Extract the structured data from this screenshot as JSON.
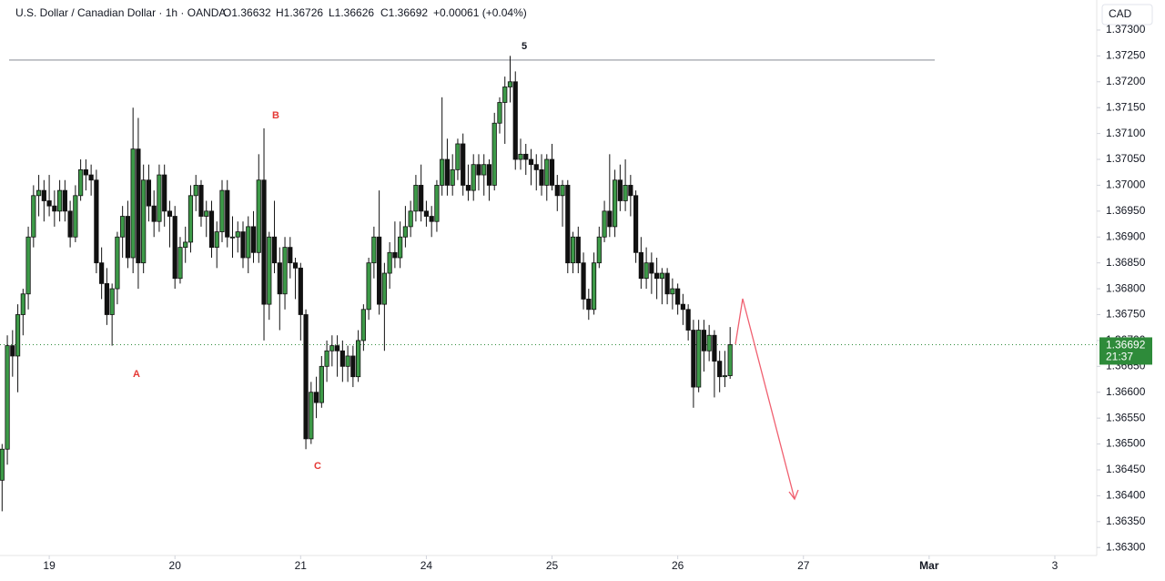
{
  "header": {
    "title": "U.S. Dollar / Canadian Dollar · 1h · OANDA",
    "open": "O1.36632",
    "high": "H1.36726",
    "low": "L1.36626",
    "close": "C1.36692",
    "change": "+0.00061 (+0.04%)"
  },
  "currency": "CAD",
  "last_price": {
    "label": "1.36692",
    "countdown": "21:37",
    "color": "#2e8b3a"
  },
  "chart_data": {
    "type": "candlestick",
    "annotations": [
      "A",
      "B",
      "C",
      "5"
    ],
    "hline": 1.37242,
    "xlim": [
      -0.4,
      209
    ],
    "xticks": [
      {
        "value": 9,
        "label": "19"
      },
      {
        "value": 33,
        "label": "20"
      },
      {
        "value": 57,
        "label": "21"
      },
      {
        "value": 81,
        "label": "24"
      },
      {
        "value": 105,
        "label": "25"
      },
      {
        "value": 129,
        "label": "26"
      },
      {
        "value": 153,
        "label": "27"
      },
      {
        "value": 177,
        "label": "Mar"
      },
      {
        "value": 201,
        "label": "3"
      }
    ],
    "ylim": [
      1.36281,
      1.37358
    ],
    "yticks": [
      {
        "value": 1.363,
        "label": "1.36300"
      },
      {
        "value": 1.3635,
        "label": "1.36350"
      },
      {
        "value": 1.364,
        "label": "1.36400"
      },
      {
        "value": 1.3645,
        "label": "1.36450"
      },
      {
        "value": 1.365,
        "label": "1.36500"
      },
      {
        "value": 1.3655,
        "label": "1.36550"
      },
      {
        "value": 1.366,
        "label": "1.36600"
      },
      {
        "value": 1.3665,
        "label": "1.36650"
      },
      {
        "value": 1.367,
        "label": "1.36700"
      },
      {
        "value": 1.3675,
        "label": "1.36750"
      },
      {
        "value": 1.368,
        "label": "1.36800"
      },
      {
        "value": 1.3685,
        "label": "1.36850"
      },
      {
        "value": 1.369,
        "label": "1.36900"
      },
      {
        "value": 1.3695,
        "label": "1.36950"
      },
      {
        "value": 1.37,
        "label": "1.37000"
      },
      {
        "value": 1.3705,
        "label": "1.37050"
      },
      {
        "value": 1.371,
        "label": "1.37100"
      },
      {
        "value": 1.3715,
        "label": "1.37150"
      },
      {
        "value": 1.372,
        "label": "1.37200"
      },
      {
        "value": 1.3725,
        "label": "1.37250"
      },
      {
        "value": 1.373,
        "label": "1.37300"
      }
    ],
    "x": [
      0,
      1,
      2,
      3,
      4,
      5,
      6,
      7,
      8,
      9,
      10,
      11,
      12,
      13,
      14,
      15,
      16,
      17,
      18,
      19,
      20,
      21,
      22,
      23,
      24,
      25,
      26,
      27,
      28,
      29,
      30,
      31,
      32,
      33,
      34,
      35,
      36,
      37,
      38,
      39,
      40,
      41,
      42,
      43,
      44,
      45,
      46,
      47,
      48,
      49,
      50,
      51,
      52,
      53,
      54,
      55,
      56,
      57,
      58,
      59,
      60,
      61,
      62,
      63,
      64,
      65,
      66,
      67,
      68,
      69,
      70,
      71,
      72,
      73,
      74,
      75,
      76,
      77,
      78,
      79,
      80,
      81,
      82,
      83,
      84,
      85,
      86,
      87,
      88,
      89,
      90,
      91,
      92,
      93,
      94,
      95,
      96,
      97,
      98,
      99,
      100,
      101,
      102,
      103,
      104,
      105,
      106,
      107,
      108,
      109,
      110,
      111,
      112,
      113,
      114,
      115,
      116,
      117,
      118,
      119,
      120,
      121,
      122,
      123,
      124,
      125,
      126,
      127,
      128,
      129,
      130,
      131,
      132,
      133,
      134,
      135,
      136,
      137,
      138,
      139
    ],
    "series": [
      {
        "up_color": "#3d9a48",
        "down_color": "#111111",
        "ohlc": [
          [
            1.3643,
            1.365,
            1.3637,
            1.3649
          ],
          [
            1.3649,
            1.3671,
            1.3646,
            1.3669
          ],
          [
            1.3669,
            1.3672,
            1.3663,
            1.3667
          ],
          [
            1.3667,
            1.3677,
            1.366,
            1.3675
          ],
          [
            1.3675,
            1.368,
            1.3671,
            1.3679
          ],
          [
            1.3679,
            1.3692,
            1.3676,
            1.369
          ],
          [
            1.369,
            1.37,
            1.3688,
            1.3698
          ],
          [
            1.3698,
            1.3702,
            1.3694,
            1.3699
          ],
          [
            1.3699,
            1.3701,
            1.3693,
            1.3697
          ],
          [
            1.3697,
            1.3702,
            1.3694,
            1.3696
          ],
          [
            1.3696,
            1.3699,
            1.3692,
            1.3695
          ],
          [
            1.3695,
            1.3701,
            1.3693,
            1.3699
          ],
          [
            1.3699,
            1.3701,
            1.3693,
            1.3695
          ],
          [
            1.3695,
            1.3697,
            1.3688,
            1.369
          ],
          [
            1.369,
            1.37,
            1.3689,
            1.3698
          ],
          [
            1.3698,
            1.3705,
            1.3697,
            1.3703
          ],
          [
            1.3703,
            1.3705,
            1.3699,
            1.3702
          ],
          [
            1.3702,
            1.3704,
            1.3698,
            1.3701
          ],
          [
            1.3701,
            1.3703,
            1.3683,
            1.3685
          ],
          [
            1.3685,
            1.3688,
            1.3678,
            1.3681
          ],
          [
            1.3681,
            1.3684,
            1.3673,
            1.3675
          ],
          [
            1.3675,
            1.3681,
            1.3669,
            1.368
          ],
          [
            1.368,
            1.3691,
            1.3677,
            1.369
          ],
          [
            1.369,
            1.3696,
            1.3686,
            1.3694
          ],
          [
            1.3694,
            1.3697,
            1.3684,
            1.3686
          ],
          [
            1.3686,
            1.3715,
            1.3683,
            1.3707
          ],
          [
            1.3707,
            1.3713,
            1.368,
            1.3685
          ],
          [
            1.3685,
            1.3704,
            1.3683,
            1.3701
          ],
          [
            1.3701,
            1.3704,
            1.3693,
            1.3696
          ],
          [
            1.3696,
            1.3699,
            1.369,
            1.3693
          ],
          [
            1.3693,
            1.3704,
            1.3691,
            1.3702
          ],
          [
            1.3702,
            1.3704,
            1.3692,
            1.3695
          ],
          [
            1.3695,
            1.3697,
            1.3688,
            1.3694
          ],
          [
            1.3694,
            1.3696,
            1.368,
            1.3682
          ],
          [
            1.3682,
            1.369,
            1.3681,
            1.3688
          ],
          [
            1.3688,
            1.3692,
            1.3685,
            1.3689
          ],
          [
            1.3689,
            1.37,
            1.3687,
            1.3698
          ],
          [
            1.3698,
            1.3702,
            1.3695,
            1.37
          ],
          [
            1.37,
            1.3701,
            1.3692,
            1.3694
          ],
          [
            1.3694,
            1.3697,
            1.369,
            1.3695
          ],
          [
            1.3695,
            1.3697,
            1.3686,
            1.3688
          ],
          [
            1.3688,
            1.3693,
            1.3684,
            1.3691
          ],
          [
            1.3691,
            1.3701,
            1.3689,
            1.3699
          ],
          [
            1.3699,
            1.3701,
            1.3688,
            1.369
          ],
          [
            1.369,
            1.3694,
            1.3686,
            1.369
          ],
          [
            1.369,
            1.3693,
            1.3687,
            1.3691
          ],
          [
            1.3691,
            1.3693,
            1.3684,
            1.3686
          ],
          [
            1.3686,
            1.3694,
            1.3683,
            1.3692
          ],
          [
            1.3692,
            1.3695,
            1.3685,
            1.3687
          ],
          [
            1.3687,
            1.3706,
            1.3685,
            1.3701
          ],
          [
            1.3701,
            1.3711,
            1.367,
            1.3677
          ],
          [
            1.3677,
            1.3691,
            1.3674,
            1.369
          ],
          [
            1.369,
            1.3697,
            1.3683,
            1.3685
          ],
          [
            1.3685,
            1.3688,
            1.3672,
            1.3679
          ],
          [
            1.3679,
            1.369,
            1.3676,
            1.3688
          ],
          [
            1.3688,
            1.369,
            1.3682,
            1.3685
          ],
          [
            1.3685,
            1.3686,
            1.3678,
            1.3684
          ],
          [
            1.3684,
            1.3685,
            1.367,
            1.3675
          ],
          [
            1.3675,
            1.3676,
            1.3649,
            1.3651
          ],
          [
            1.3651,
            1.3662,
            1.365,
            1.366
          ],
          [
            1.366,
            1.3663,
            1.3655,
            1.3658
          ],
          [
            1.3658,
            1.3667,
            1.3657,
            1.3665
          ],
          [
            1.3665,
            1.367,
            1.3662,
            1.3668
          ],
          [
            1.3668,
            1.3671,
            1.3665,
            1.3669
          ],
          [
            1.3669,
            1.3671,
            1.3663,
            1.3668
          ],
          [
            1.3668,
            1.367,
            1.3662,
            1.3665
          ],
          [
            1.3665,
            1.3669,
            1.3662,
            1.3667
          ],
          [
            1.3667,
            1.3669,
            1.3661,
            1.3663
          ],
          [
            1.3663,
            1.3672,
            1.3662,
            1.367
          ],
          [
            1.367,
            1.3677,
            1.3668,
            1.3676
          ],
          [
            1.3676,
            1.3686,
            1.3674,
            1.3685
          ],
          [
            1.3685,
            1.3692,
            1.3682,
            1.369
          ],
          [
            1.369,
            1.3699,
            1.3675,
            1.3677
          ],
          [
            1.3677,
            1.3685,
            1.3668,
            1.3683
          ],
          [
            1.3683,
            1.3689,
            1.368,
            1.3687
          ],
          [
            1.3687,
            1.3693,
            1.3684,
            1.3686
          ],
          [
            1.3686,
            1.3693,
            1.3684,
            1.369
          ],
          [
            1.369,
            1.3696,
            1.3688,
            1.3692
          ],
          [
            1.3692,
            1.3697,
            1.369,
            1.3695
          ],
          [
            1.3695,
            1.3702,
            1.3693,
            1.37
          ],
          [
            1.37,
            1.3704,
            1.3693,
            1.3695
          ],
          [
            1.3695,
            1.3697,
            1.3692,
            1.3694
          ],
          [
            1.3694,
            1.3696,
            1.369,
            1.3693
          ],
          [
            1.3693,
            1.3701,
            1.3691,
            1.37
          ],
          [
            1.37,
            1.3717,
            1.3698,
            1.3705
          ],
          [
            1.3705,
            1.3709,
            1.3698,
            1.37
          ],
          [
            1.37,
            1.3706,
            1.3698,
            1.3703
          ],
          [
            1.3703,
            1.3709,
            1.3701,
            1.3708
          ],
          [
            1.3708,
            1.371,
            1.3698,
            1.37
          ],
          [
            1.37,
            1.3704,
            1.3697,
            1.3699
          ],
          [
            1.3699,
            1.3706,
            1.3697,
            1.3704
          ],
          [
            1.3704,
            1.3706,
            1.3699,
            1.3702
          ],
          [
            1.3702,
            1.3706,
            1.3698,
            1.3704
          ],
          [
            1.3704,
            1.3705,
            1.3697,
            1.37
          ],
          [
            1.37,
            1.3714,
            1.3699,
            1.3712
          ],
          [
            1.3712,
            1.3717,
            1.371,
            1.3716
          ],
          [
            1.3716,
            1.3721,
            1.3708,
            1.3719
          ],
          [
            1.3719,
            1.3725,
            1.3716,
            1.372
          ],
          [
            1.372,
            1.3722,
            1.3703,
            1.3705
          ],
          [
            1.3705,
            1.3709,
            1.3703,
            1.3706
          ],
          [
            1.3706,
            1.3708,
            1.3702,
            1.3705
          ],
          [
            1.3705,
            1.3707,
            1.37,
            1.3704
          ],
          [
            1.3704,
            1.3706,
            1.3699,
            1.3703
          ],
          [
            1.3703,
            1.3706,
            1.3698,
            1.37
          ],
          [
            1.37,
            1.3706,
            1.3697,
            1.3705
          ],
          [
            1.3705,
            1.3708,
            1.3699,
            1.37
          ],
          [
            1.37,
            1.3702,
            1.3695,
            1.3698
          ],
          [
            1.3698,
            1.3701,
            1.3692,
            1.37
          ],
          [
            1.37,
            1.3701,
            1.3683,
            1.3685
          ],
          [
            1.3685,
            1.3691,
            1.3683,
            1.369
          ],
          [
            1.369,
            1.3692,
            1.3683,
            1.3685
          ],
          [
            1.3685,
            1.3687,
            1.3676,
            1.3678
          ],
          [
            1.3678,
            1.368,
            1.3674,
            1.3676
          ],
          [
            1.3676,
            1.3687,
            1.3675,
            1.3685
          ],
          [
            1.3685,
            1.3692,
            1.3684,
            1.369
          ],
          [
            1.369,
            1.3697,
            1.3689,
            1.3695
          ],
          [
            1.3695,
            1.3706,
            1.369,
            1.3692
          ],
          [
            1.3692,
            1.3703,
            1.369,
            1.3701
          ],
          [
            1.3701,
            1.3704,
            1.3695,
            1.3697
          ],
          [
            1.3697,
            1.3705,
            1.3695,
            1.37
          ],
          [
            1.37,
            1.3702,
            1.3694,
            1.3698
          ],
          [
            1.3698,
            1.3699,
            1.3685,
            1.3687
          ],
          [
            1.3687,
            1.369,
            1.368,
            1.3682
          ],
          [
            1.3682,
            1.3688,
            1.368,
            1.3685
          ],
          [
            1.3685,
            1.3687,
            1.3679,
            1.3683
          ],
          [
            1.3683,
            1.3686,
            1.3678,
            1.3682
          ],
          [
            1.3682,
            1.3684,
            1.3677,
            1.3683
          ],
          [
            1.3683,
            1.3684,
            1.3677,
            1.3679
          ],
          [
            1.3679,
            1.3682,
            1.3676,
            1.368
          ],
          [
            1.368,
            1.3681,
            1.3675,
            1.3677
          ],
          [
            1.3677,
            1.3679,
            1.3673,
            1.3676
          ],
          [
            1.3676,
            1.3677,
            1.367,
            1.3672
          ],
          [
            1.3672,
            1.3674,
            1.3657,
            1.3661
          ],
          [
            1.3661,
            1.3674,
            1.366,
            1.3672
          ],
          [
            1.3672,
            1.3674,
            1.3664,
            1.3668
          ],
          [
            1.3668,
            1.3673,
            1.3666,
            1.3671
          ],
          [
            1.3671,
            1.3672,
            1.3659,
            1.3666
          ],
          [
            1.3666,
            1.3668,
            1.366,
            1.3663
          ],
          [
            1.3663,
            1.3668,
            1.3661,
            1.36632
          ],
          [
            1.36632,
            1.36726,
            1.36626,
            1.36692
          ]
        ]
      }
    ]
  }
}
